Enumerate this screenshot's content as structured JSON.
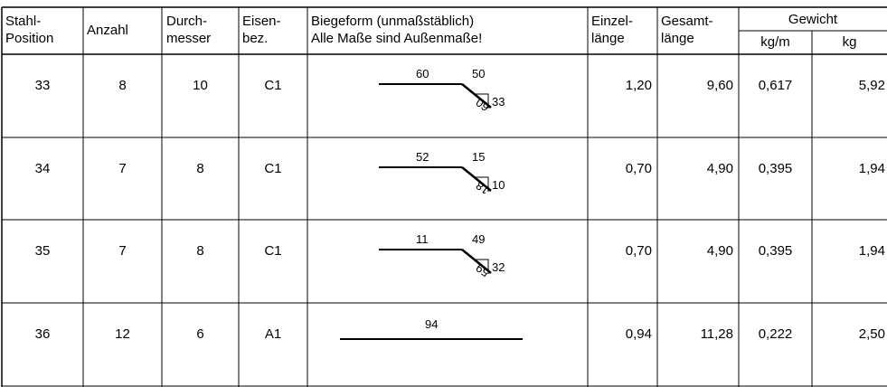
{
  "header": {
    "stahl_position": [
      "Stahl-",
      "Position"
    ],
    "anzahl": "Anzahl",
    "durchmesser": [
      "Durch-",
      "messer"
    ],
    "eisenbez": [
      "Eisen-",
      "bez."
    ],
    "biegeform": [
      "Biegeform (unmaßstäblich)",
      "Alle Maße sind Außenmaße!"
    ],
    "einzellaenge": [
      "Einzel-",
      "länge"
    ],
    "gesamtlaenge": [
      "Gesamt-",
      "länge"
    ],
    "gewicht": "Gewicht",
    "kg_per_m": "kg/m",
    "kg": "kg"
  },
  "rows": [
    {
      "position": "33",
      "anzahl": "8",
      "durchmesser": "10",
      "eisenbez": "C1",
      "shape": {
        "type": "bent",
        "top_left": "60",
        "top_right": "50",
        "diag": "60",
        "right": "33"
      },
      "einzel": "1,20",
      "gesamt": "9,60",
      "kgm": "0,617",
      "kg": "5,92"
    },
    {
      "position": "34",
      "anzahl": "7",
      "durchmesser": "8",
      "eisenbez": "C1",
      "shape": {
        "type": "bent",
        "top_left": "52",
        "top_right": "15",
        "diag": "18",
        "right": "10"
      },
      "einzel": "0,70",
      "gesamt": "4,90",
      "kgm": "0,395",
      "kg": "1,94"
    },
    {
      "position": "35",
      "anzahl": "7",
      "durchmesser": "8",
      "eisenbez": "C1",
      "shape": {
        "type": "bent",
        "top_left": "11",
        "top_right": "49",
        "diag": "59",
        "right": "32"
      },
      "einzel": "0,70",
      "gesamt": "4,90",
      "kgm": "0,395",
      "kg": "1,94"
    },
    {
      "position": "36",
      "anzahl": "12",
      "durchmesser": "6",
      "eisenbez": "A1",
      "shape": {
        "type": "straight",
        "top_left": "94"
      },
      "einzel": "0,94",
      "gesamt": "11,28",
      "kgm": "0,222",
      "kg": "2,50"
    }
  ]
}
